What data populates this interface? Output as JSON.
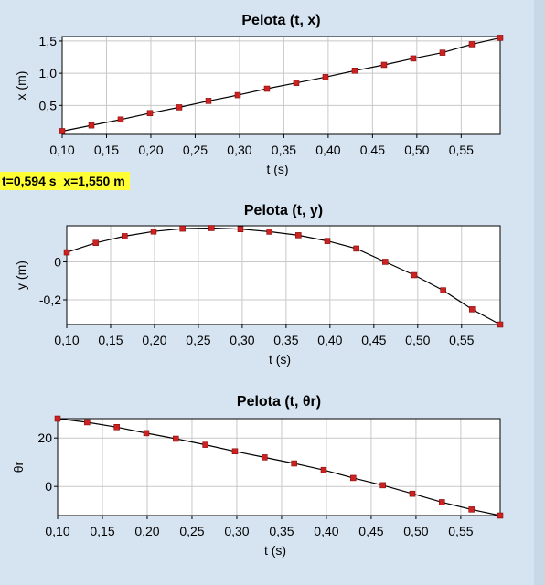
{
  "readout": {
    "text": "t=0,594 s  x=1,550 m"
  },
  "chart_data": [
    {
      "type": "scatter",
      "title": "Pelota (t, x)",
      "xlabel": "t (s)",
      "ylabel": "x (m)",
      "xlim": [
        0.1,
        0.594
      ],
      "ylim": [
        0.05,
        1.57
      ],
      "xticks": [
        0.1,
        0.15,
        0.2,
        0.25,
        0.3,
        0.35,
        0.4,
        0.45,
        0.5,
        0.55
      ],
      "yticks": [
        0.5,
        1.0,
        1.5
      ],
      "grid": true,
      "series": [
        {
          "x": [
            0.1,
            0.133,
            0.166,
            0.199,
            0.232,
            0.265,
            0.298,
            0.331,
            0.364,
            0.397,
            0.43,
            0.463,
            0.496,
            0.529,
            0.562,
            0.594
          ],
          "values": [
            0.1,
            0.19,
            0.28,
            0.38,
            0.47,
            0.57,
            0.66,
            0.76,
            0.85,
            0.94,
            1.04,
            1.13,
            1.23,
            1.32,
            1.45,
            1.55
          ]
        }
      ]
    },
    {
      "type": "scatter",
      "title": "Pelota (t, y)",
      "xlabel": "t (s)",
      "ylabel": "y (m)",
      "xlim": [
        0.1,
        0.594
      ],
      "ylim": [
        -0.33,
        0.19
      ],
      "xticks": [
        0.1,
        0.15,
        0.2,
        0.25,
        0.3,
        0.35,
        0.4,
        0.45,
        0.5,
        0.55
      ],
      "yticks": [
        -0.2,
        0
      ],
      "grid": true,
      "series": [
        {
          "x": [
            0.1,
            0.133,
            0.166,
            0.199,
            0.232,
            0.265,
            0.298,
            0.331,
            0.364,
            0.397,
            0.43,
            0.463,
            0.496,
            0.529,
            0.562,
            0.594
          ],
          "values": [
            0.05,
            0.1,
            0.135,
            0.16,
            0.175,
            0.178,
            0.172,
            0.159,
            0.14,
            0.11,
            0.07,
            0.0,
            -0.07,
            -0.15,
            -0.25,
            -0.33
          ]
        }
      ]
    },
    {
      "type": "scatter",
      "title": "Pelota (t, θr)",
      "xlabel": "t (s)",
      "ylabel": "θr",
      "xlim": [
        0.1,
        0.594
      ],
      "ylim": [
        -12,
        28
      ],
      "xticks": [
        0.1,
        0.15,
        0.2,
        0.25,
        0.3,
        0.35,
        0.4,
        0.45,
        0.5,
        0.55
      ],
      "yticks": [
        0,
        20
      ],
      "grid": true,
      "series": [
        {
          "x": [
            0.1,
            0.133,
            0.166,
            0.199,
            0.232,
            0.265,
            0.298,
            0.331,
            0.364,
            0.397,
            0.43,
            0.463,
            0.496,
            0.529,
            0.562,
            0.594
          ],
          "values": [
            28,
            26.5,
            24.5,
            22,
            19.7,
            17.2,
            14.5,
            12,
            9.5,
            6.8,
            3.5,
            0.5,
            -3,
            -6.5,
            -9.5,
            -12
          ]
        }
      ]
    }
  ]
}
